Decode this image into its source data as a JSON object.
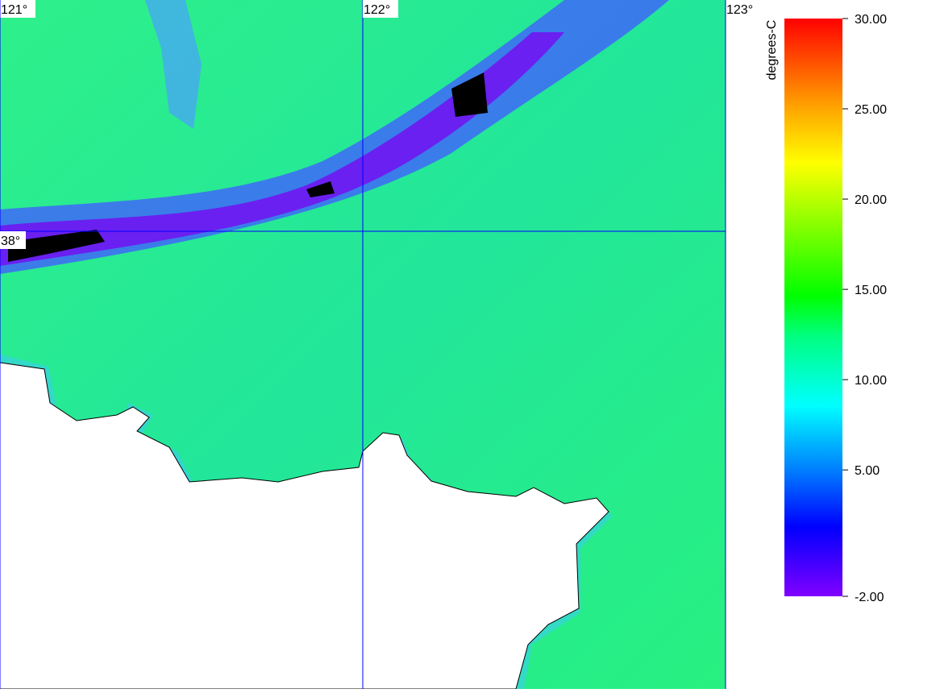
{
  "map": {
    "lon_labels": [
      {
        "value": 121,
        "label": "121°"
      },
      {
        "value": 122,
        "label": "122°"
      },
      {
        "value": 123,
        "label": "123°"
      }
    ],
    "lat_labels": [
      {
        "value": 38,
        "label": "38°"
      }
    ]
  },
  "colorbar": {
    "title": "degrees-C",
    "range": [
      -2,
      30
    ],
    "ticks": [
      {
        "value": 30,
        "label": "30.00"
      },
      {
        "value": 25,
        "label": "25.00"
      },
      {
        "value": 20,
        "label": "20.00"
      },
      {
        "value": 15,
        "label": "15.00"
      },
      {
        "value": 10,
        "label": "10.00"
      },
      {
        "value": 5,
        "label": "5.00"
      },
      {
        "value": -2,
        "label": "-2.00"
      }
    ]
  }
}
